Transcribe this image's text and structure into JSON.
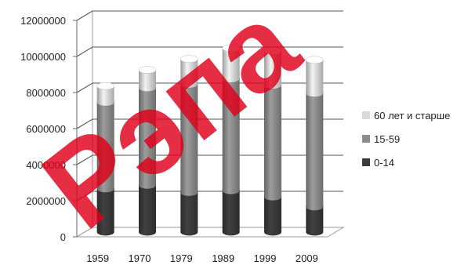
{
  "chart_data": {
    "type": "bar",
    "stacked": true,
    "style": "3d-cylinder",
    "categories": [
      "1959",
      "1970",
      "1979",
      "1989",
      "1999",
      "2009"
    ],
    "series": [
      {
        "name": "0-14",
        "color": "#3a3a3a",
        "values": [
          2400000,
          2600000,
          2200000,
          2300000,
          1950000,
          1400000
        ]
      },
      {
        "name": "15-59",
        "color": "#8c8c8c",
        "values": [
          4800000,
          5400000,
          6000000,
          6200000,
          6200000,
          6300000
        ]
      },
      {
        "name": "60 лет и старше",
        "color": "#d9d9d9",
        "values": [
          900000,
          1000000,
          1400000,
          1700000,
          1900000,
          1850000
        ]
      }
    ],
    "ylim": [
      0,
      12000000
    ],
    "yticks": [
      "0",
      "2000000",
      "4000000",
      "6000000",
      "8000000",
      "10000000",
      "12000000"
    ],
    "grid": true,
    "legend_position": "right",
    "title": "",
    "xlabel": "",
    "ylabel": ""
  },
  "watermark": {
    "text": "Рэпа",
    "color": "#e0001a"
  }
}
